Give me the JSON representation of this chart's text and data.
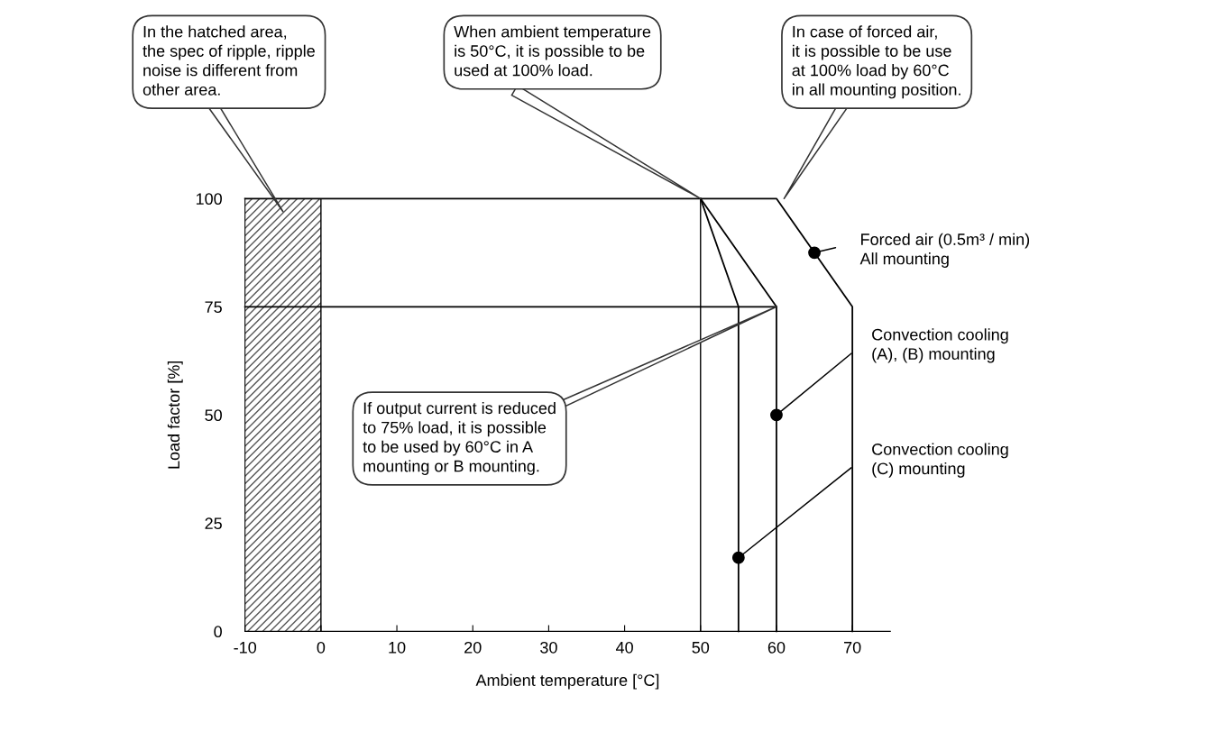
{
  "chart_data": {
    "type": "line",
    "xlabel": "Ambient temperature [°C]",
    "ylabel": "Load factor [%]",
    "xlim": [
      -10,
      75
    ],
    "ylim": [
      0,
      100
    ],
    "xticks": [
      -10,
      0,
      10,
      20,
      30,
      40,
      50,
      60,
      70
    ],
    "yticks": [
      0,
      25,
      50,
      75,
      100
    ],
    "grid": false,
    "legend": false,
    "marker": "none",
    "line_style": "solid",
    "series": [
      {
        "color": "#000000",
        "x": [
          -10,
          60,
          70,
          70
        ],
        "values": [
          100,
          100,
          75,
          0
        ]
      },
      {
        "color": "#000000",
        "x": [
          50,
          60,
          60
        ],
        "values": [
          100,
          75,
          0
        ]
      },
      {
        "color": "#000000",
        "x": [
          50,
          55,
          55
        ],
        "values": [
          100,
          75,
          0
        ]
      },
      {
        "color": "#000000",
        "x": [
          -10,
          60
        ],
        "values": [
          75,
          75
        ]
      },
      {
        "type": "scatter",
        "marker": "circle",
        "color": "#000000",
        "x": [
          65,
          60,
          55
        ],
        "values": [
          87.5,
          50,
          17
        ]
      }
    ],
    "ref_lines": [
      {
        "axis": "x",
        "value": 0,
        "color": "#000000"
      },
      {
        "axis": "x",
        "value": 50,
        "color": "#000000"
      }
    ],
    "bands": [
      {
        "axis": "x",
        "from": -10,
        "to": 0,
        "color": "#555555"
      }
    ],
    "annotations": [
      "In the hatched area,\nthe spec of ripple, ripple\nnoise is different from\nother area.",
      "When ambient temperature\nis 50°C, it is possible to be\nused at 100% load.",
      "In case of forced air,\nit is possible to be use\nat 100% load by 60°C\nin all mounting position.",
      "If output current is reduced\nto 75% load, it is possible\nto be used by 60°C in A\nmounting or B mounting.",
      {
        "text": "Forced air (0.5m³ / min)\nAll mounting",
        "x": 65,
        "y": 87.5
      },
      {
        "text": "Convection cooling\n(A), (B) mounting",
        "x": 60,
        "y": 50
      },
      {
        "text": "Convection cooling\n(C) mounting",
        "x": 55,
        "y": 17
      }
    ]
  }
}
